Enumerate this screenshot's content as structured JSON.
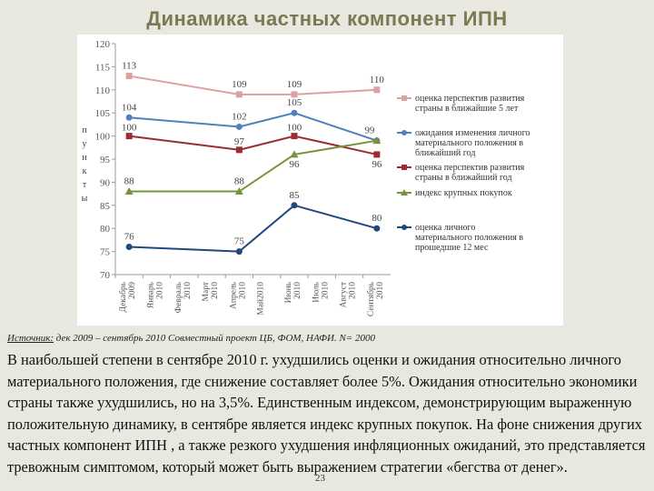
{
  "slide": {
    "title": "Динамика частных компонент ИПН",
    "source_label": "Источник:",
    "source_text": " дек 2009 – сентябрь 2010 Совместный проект ЦБ, ФОМ, НАФИ. N= 2000",
    "body": "В наибольшей степени в сентябре 2010 г. ухудшились оценки и ожидания относительно личного материального положения, где снижение составляет более 5%.  Ожидания относительно экономики страны также ухудшились, но на 3,5%. Единственным индексом, демонстрирующим выраженную положительную динамику, в сентябре является индекс крупных покупок. На фоне снижения других частных компонент ИПН , а также резкого ухудшения инфляционных ожиданий, это представляется тревожным симптомом, который может быть выражением стратегии «бегства от денег».",
    "page_number": "23"
  },
  "chart_data": {
    "type": "line",
    "title": "Динамика частных компонент ИПН",
    "ylabel": "п у н к т ы",
    "y_axis_letters": [
      "п",
      "у",
      "н",
      "к",
      "т",
      "ы"
    ],
    "xlabel": "",
    "ylim": [
      70,
      120
    ],
    "yticks": [
      70,
      75,
      80,
      85,
      90,
      95,
      100,
      105,
      110,
      115,
      120
    ],
    "categories": [
      "Декабрь 2009",
      "Январь 2010",
      "Февраль 2010",
      "Март 2010",
      "Апрель 2010",
      "Май2010",
      "Июнь 2010",
      "Июль 2010",
      "Август 2010",
      "Сентябрь 2010"
    ],
    "grid": false,
    "legend_position": "right",
    "series": [
      {
        "name": "оценка перспектив развития страны в ближайшие 5 лет",
        "color": "#d9a3a3",
        "marker": "square",
        "points": [
          {
            "x": "Декабрь 2009",
            "y": 113
          },
          {
            "x": "Апрель 2010",
            "y": 109
          },
          {
            "x": "Июнь 2010",
            "y": 109
          },
          {
            "x": "Сентябрь 2010",
            "y": 110
          }
        ]
      },
      {
        "name": "ожидания изменения личного материального положения в ближайший год",
        "color": "#4f81bd",
        "marker": "circle",
        "points": [
          {
            "x": "Декабрь 2009",
            "y": 104
          },
          {
            "x": "Апрель 2010",
            "y": 102
          },
          {
            "x": "Июнь 2010",
            "y": 105
          },
          {
            "x": "Сентябрь 2010",
            "y": 99
          }
        ]
      },
      {
        "name": "оценка перспектив развития страны в ближайший год",
        "color": "#9b2d30",
        "marker": "square",
        "points": [
          {
            "x": "Декабрь 2009",
            "y": 100
          },
          {
            "x": "Апрель 2010",
            "y": 97
          },
          {
            "x": "Июнь 2010",
            "y": 100
          },
          {
            "x": "Сентябрь 2010",
            "y": 96
          }
        ]
      },
      {
        "name": "индекс крупных покупок",
        "color": "#77933c",
        "marker": "triangle",
        "points": [
          {
            "x": "Декабрь 2009",
            "y": 88
          },
          {
            "x": "Апрель 2010",
            "y": 88
          },
          {
            "x": "Июнь 2010",
            "y": 96
          },
          {
            "x": "Сентябрь 2010",
            "y": 99
          }
        ]
      },
      {
        "name": "оценка личного материального положения в прошедшие 12 мес",
        "color": "#1f497d",
        "marker": "circle",
        "points": [
          {
            "x": "Декабрь 2009",
            "y": 76
          },
          {
            "x": "Апрель 2010",
            "y": 75
          },
          {
            "x": "Июнь 2010",
            "y": 85
          },
          {
            "x": "Сентябрь 2010",
            "y": 80
          }
        ]
      }
    ]
  }
}
